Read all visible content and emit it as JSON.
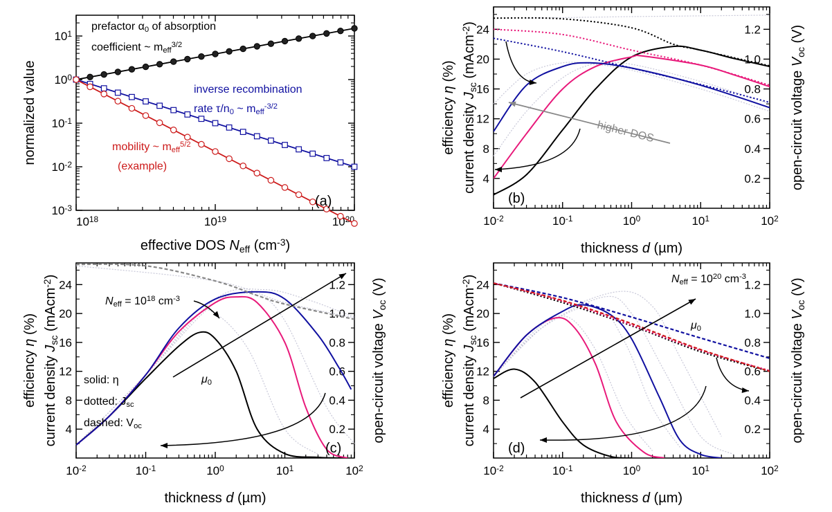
{
  "colors": {
    "black": "#000000",
    "blue": "#1010a0",
    "red": "#cc1a1a",
    "magenta": "#e8197a",
    "gray": "#888888",
    "lightgray": "#c8c8d8"
  },
  "chart_data": [
    {
      "id": "a",
      "type": "line",
      "panel_label": "(a)",
      "xlabel": "effective DOS N_eff (cm^-3)",
      "ylabel": "normalized value",
      "xscale": "log",
      "yscale": "log",
      "xlim": [
        1e+18,
        1e+20
      ],
      "ylim": [
        0.001,
        30
      ],
      "xticks": [
        {
          "v": 1e+18,
          "base": "10",
          "exp": "18"
        },
        {
          "v": 1e+19,
          "base": "10",
          "exp": "19"
        },
        {
          "v": 1e+20,
          "base": "10",
          "exp": "20"
        }
      ],
      "yticks": [
        {
          "v": 0.001,
          "base": "10",
          "exp": "-3"
        },
        {
          "v": 0.01,
          "base": "10",
          "exp": "-2"
        },
        {
          "v": 0.1,
          "base": "10",
          "exp": "-1"
        },
        {
          "v": 1,
          "base": "10",
          "exp": "0"
        },
        {
          "v": 10,
          "base": "10",
          "exp": "1"
        }
      ],
      "series": [
        {
          "name": "prefactor α0 of absorption coefficient ~ m_eff^3/2",
          "color": "black",
          "marker": "filled-circle",
          "x_start": 1e+18,
          "x_end": 1e+20,
          "y_start": 1,
          "y_end": 15,
          "n": 21
        },
        {
          "name": "inverse recombination rate τ/n0 ~ m_eff^-3/2",
          "color": "blue",
          "marker": "open-square",
          "x_start": 1e+18,
          "x_end": 1e+20,
          "y_start": 1,
          "y_end": 0.01,
          "n": 21
        },
        {
          "name": "mobility ~ m_eff^5/2 (example)",
          "color": "red",
          "marker": "open-circle",
          "x_start": 1e+18,
          "x_end": 1e+20,
          "y_start": 1,
          "y_end": 0.0005,
          "n": 21
        }
      ],
      "annotations": {
        "black_line1": "prefactor α",
        "black_sub1": "0",
        "black_line1b": " of absorption",
        "black_line2": "coefficient ~ m",
        "black_sub2": "eff",
        "black_sup2": "3/2",
        "blue_line1": "inverse recombination",
        "blue_line2a": "rate τ/n",
        "blue_sub2": "0",
        "blue_line2b": " ~ m",
        "blue_sub2b": "eff",
        "blue_sup2b": "-3/2",
        "red_line1": "mobility ~ m",
        "red_sub1": "eff",
        "red_sup1": "5/2",
        "red_line2": "(example)"
      }
    },
    {
      "id": "b",
      "type": "line",
      "panel_label": "(b)",
      "xlabel": "thickness d (µm)",
      "ylabel_left_1": "efficiency η (%)",
      "ylabel_left_2": "current density J_sc (mAcm^-2)",
      "ylabel_right": "open-circuit voltage V_oc (V)",
      "xscale": "log",
      "xlim": [
        0.01,
        100
      ],
      "ylim_left": [
        0,
        27
      ],
      "ylim_right": [
        0,
        1.35
      ],
      "xticks": [
        "10^-2",
        "10^-1",
        "10^0",
        "10^1",
        "10^2"
      ],
      "yticks_left": [
        4,
        8,
        12,
        16,
        20,
        24
      ],
      "yticks_right": [
        0.2,
        0.4,
        0.6,
        0.8,
        1.0,
        1.2
      ],
      "text_annotation": "higher DOS",
      "series": [
        {
          "name": "η black",
          "style": "solid",
          "color": "black",
          "points": [
            [
              0.01,
              1.8
            ],
            [
              0.03,
              4.5
            ],
            [
              0.1,
              10.5
            ],
            [
              0.3,
              16
            ],
            [
              1,
              20.3
            ],
            [
              4,
              21.7
            ],
            [
              10,
              21.2
            ],
            [
              30,
              20.1
            ],
            [
              100,
              19
            ]
          ]
        },
        {
          "name": "η magenta",
          "style": "solid",
          "color": "magenta",
          "points": [
            [
              0.01,
              4
            ],
            [
              0.03,
              10
            ],
            [
              0.1,
              16
            ],
            [
              0.3,
              19
            ],
            [
              1,
              20.3
            ],
            [
              1.5,
              20.4
            ],
            [
              10,
              19.2
            ],
            [
              30,
              17.9
            ],
            [
              100,
              16.3
            ]
          ]
        },
        {
          "name": "η blue",
          "style": "solid",
          "color": "blue",
          "points": [
            [
              0.01,
              10.3
            ],
            [
              0.03,
              16.5
            ],
            [
              0.1,
              19
            ],
            [
              0.25,
              19.5
            ],
            [
              1,
              18.8
            ],
            [
              10,
              16.5
            ],
            [
              100,
              13.5
            ]
          ]
        },
        {
          "name": "Jsc black",
          "style": "dotted",
          "color": "black",
          "points": [
            [
              0.01,
              25.5
            ],
            [
              0.1,
              25.4
            ],
            [
              1,
              24.2
            ],
            [
              4,
              22
            ],
            [
              10,
              21.2
            ],
            [
              100,
              19.1
            ]
          ]
        },
        {
          "name": "Jsc magenta",
          "style": "dotted",
          "color": "magenta",
          "points": [
            [
              0.01,
              24
            ],
            [
              0.1,
              23.3
            ],
            [
              1,
              21.2
            ],
            [
              10,
              19.2
            ],
            [
              100,
              16.5
            ]
          ]
        },
        {
          "name": "Jsc blue",
          "style": "dotted",
          "color": "blue",
          "points": [
            [
              0.01,
              22.8
            ],
            [
              0.1,
              21
            ],
            [
              1,
              18.8
            ],
            [
              10,
              16.6
            ],
            [
              100,
              14.2
            ]
          ]
        }
      ]
    },
    {
      "id": "c",
      "type": "line",
      "panel_label": "(c)",
      "xlabel": "thickness d (µm)",
      "ylabel_left_1": "efficiency η (%)",
      "ylabel_left_2": "current density J_sc (mAcm^-2)",
      "ylabel_right": "open-circuit voltage V_oc (V)",
      "xscale": "log",
      "xlim": [
        0.01,
        100
      ],
      "ylim_left": [
        0,
        27
      ],
      "ylim_right": [
        0,
        1.35
      ],
      "xticks": [
        "10^-2",
        "10^-1",
        "10^0",
        "10^1",
        "10^2"
      ],
      "yticks_left": [
        4,
        8,
        12,
        16,
        20,
        24
      ],
      "yticks_right": [
        0.2,
        0.4,
        0.6,
        0.8,
        1.0,
        1.2
      ],
      "annotations": {
        "neff_a": "N",
        "neff_sub": "eff",
        "neff_b": " = 10",
        "neff_sup": "18",
        "neff_c": " cm",
        "neff_sup2": "-3",
        "legend_1": "solid: η",
        "legend_2a": "dotted: J",
        "legend_2sub": "sc",
        "legend_3a": "dashed: V",
        "legend_3sub": "oc",
        "mu": "μ",
        "mu_sub": "0"
      },
      "series": [
        {
          "name": "η black",
          "style": "solid",
          "color": "black",
          "points": [
            [
              0.01,
              1.8
            ],
            [
              0.03,
              5.8
            ],
            [
              0.1,
              11
            ],
            [
              0.3,
              15.5
            ],
            [
              0.6,
              17.4
            ],
            [
              1,
              16.5
            ],
            [
              2,
              12
            ],
            [
              4,
              4
            ],
            [
              10,
              0.6
            ],
            [
              30,
              0.1
            ],
            [
              70,
              0
            ]
          ]
        },
        {
          "name": "η magenta",
          "style": "solid",
          "color": "magenta",
          "points": [
            [
              0.01,
              1.8
            ],
            [
              0.03,
              5.8
            ],
            [
              0.1,
              11.5
            ],
            [
              0.3,
              17.5
            ],
            [
              1,
              21.5
            ],
            [
              2,
              22.3
            ],
            [
              4,
              21.5
            ],
            [
              10,
              16
            ],
            [
              20,
              7
            ],
            [
              40,
              1.2
            ],
            [
              80,
              0
            ]
          ]
        },
        {
          "name": "η blue",
          "style": "solid",
          "color": "blue",
          "points": [
            [
              0.01,
              1.8
            ],
            [
              0.03,
              5.8
            ],
            [
              0.1,
              11.5
            ],
            [
              0.3,
              18
            ],
            [
              1,
              22
            ],
            [
              4,
              23
            ],
            [
              10,
              22
            ],
            [
              30,
              17
            ],
            [
              60,
              12.5
            ],
            [
              90,
              9.5
            ]
          ]
        },
        {
          "name": "Voc dashed",
          "style": "dashed",
          "color": "gray",
          "points": [
            [
              0.01,
              26.8
            ],
            [
              0.1,
              26.6
            ],
            [
              1,
              24.5
            ],
            [
              4,
              22.5
            ],
            [
              10,
              21.3
            ],
            [
              100,
              19.2
            ]
          ]
        }
      ]
    },
    {
      "id": "d",
      "type": "line",
      "panel_label": "(d)",
      "xlabel": "thickness d (µm)",
      "ylabel_left_1": "efficiency η (%)",
      "ylabel_left_2": "current density J_sc (mAcm^-2)",
      "ylabel_right": "open-circuit voltage V_oc (V)",
      "xscale": "log",
      "xlim": [
        0.01,
        100
      ],
      "ylim_left": [
        0,
        27
      ],
      "ylim_right": [
        0,
        1.35
      ],
      "xticks": [
        "10^-2",
        "10^-1",
        "10^0",
        "10^1",
        "10^2"
      ],
      "yticks_left": [
        4,
        8,
        12,
        16,
        20,
        24
      ],
      "yticks_right": [
        0.2,
        0.4,
        0.6,
        0.8,
        1.0,
        1.2
      ],
      "annotations": {
        "neff_a": "N",
        "neff_sub": "eff",
        "neff_b": " = 10",
        "neff_sup": "20",
        "neff_c": " cm",
        "neff_sup2": "-3",
        "mu": "μ",
        "mu_sub": "0"
      },
      "series": [
        {
          "name": "η black",
          "style": "solid",
          "color": "black",
          "points": [
            [
              0.01,
              11
            ],
            [
              0.02,
              12.3
            ],
            [
              0.04,
              10.5
            ],
            [
              0.1,
              5
            ],
            [
              0.2,
              1.8
            ],
            [
              0.5,
              0.2
            ],
            [
              1,
              0
            ]
          ]
        },
        {
          "name": "η magenta",
          "style": "solid",
          "color": "magenta",
          "points": [
            [
              0.01,
              11.3
            ],
            [
              0.03,
              17
            ],
            [
              0.08,
              19.4
            ],
            [
              0.15,
              18
            ],
            [
              0.3,
              13
            ],
            [
              0.6,
              5
            ],
            [
              1.5,
              0.8
            ],
            [
              3,
              0
            ]
          ]
        },
        {
          "name": "η blue",
          "style": "solid",
          "color": "blue",
          "points": [
            [
              0.01,
              11.3
            ],
            [
              0.03,
              17
            ],
            [
              0.1,
              20.3
            ],
            [
              0.2,
              21.2
            ],
            [
              0.5,
              19.8
            ],
            [
              1,
              16.5
            ],
            [
              2.5,
              8.5
            ],
            [
              5,
              2.5
            ],
            [
              10,
              0.5
            ],
            [
              20,
              0
            ]
          ]
        },
        {
          "name": "Jsc black dotted",
          "style": "dotted",
          "color": "black",
          "points": [
            [
              0.01,
              24.2
            ],
            [
              0.1,
              21.5
            ],
            [
              1,
              18.3
            ],
            [
              10,
              14.7
            ],
            [
              100,
              12
            ]
          ]
        },
        {
          "name": "Jsc magenta dotted",
          "style": "dotted",
          "color": "magenta",
          "points": [
            [
              0.01,
              24.2
            ],
            [
              0.1,
              21.7
            ],
            [
              1,
              18.4
            ],
            [
              10,
              14.9
            ],
            [
              100,
              12.1
            ]
          ]
        },
        {
          "name": "Voc blue dashed",
          "style": "dashed",
          "color": "blue",
          "points": [
            [
              0.01,
              24.2
            ],
            [
              0.1,
              22.2
            ],
            [
              1,
              19.5
            ],
            [
              10,
              16.6
            ],
            [
              100,
              13.8
            ]
          ]
        },
        {
          "name": "Voc red dashed",
          "style": "dashed",
          "color": "red",
          "points": [
            [
              0.01,
              24.2
            ],
            [
              0.1,
              21.8
            ],
            [
              1,
              18.6
            ],
            [
              10,
              15
            ],
            [
              100,
              12
            ]
          ]
        }
      ]
    }
  ]
}
